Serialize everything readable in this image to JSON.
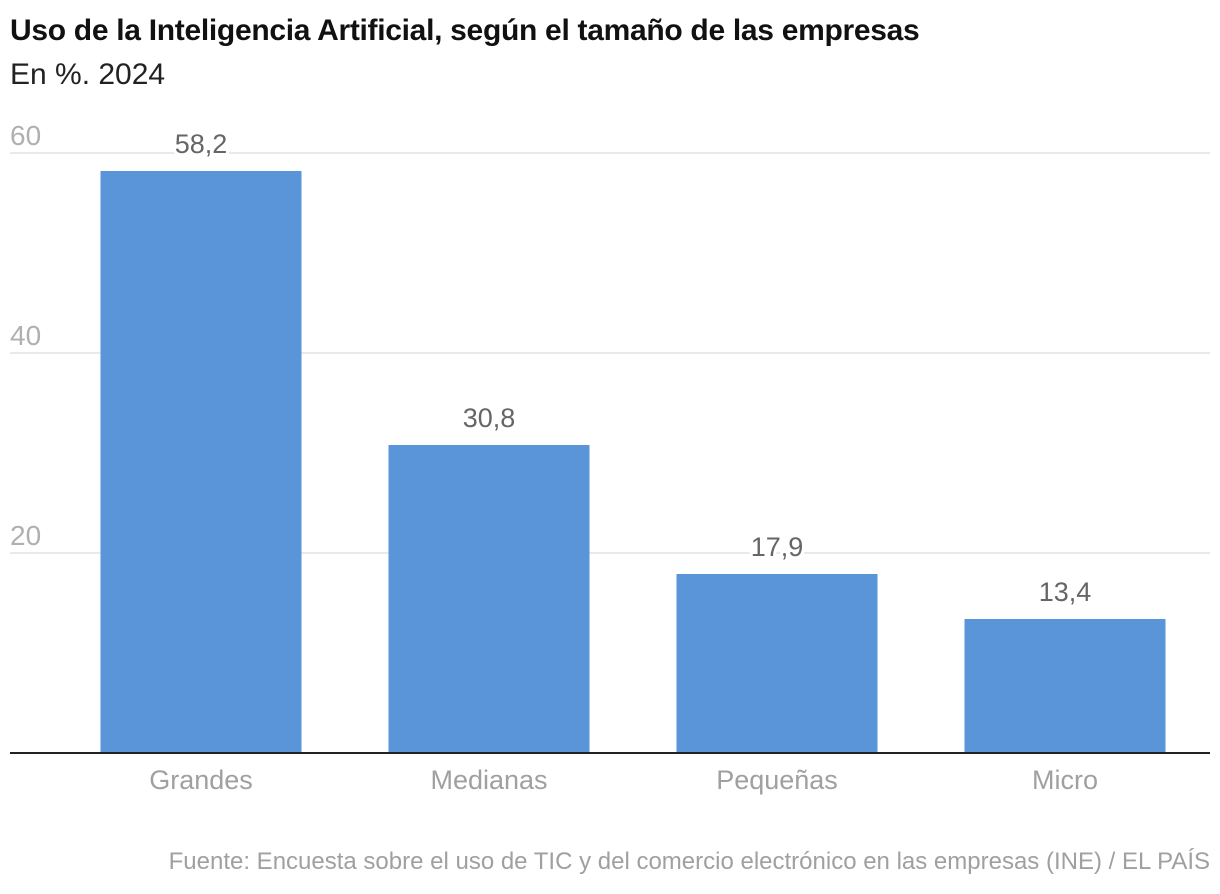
{
  "chart_data": {
    "type": "bar",
    "title": "Uso de la Inteligencia Artificial, según el tamaño de las empresas",
    "subtitle": "En %. 2024",
    "categories": [
      "Grandes",
      "Medianas",
      "Pequeñas",
      "Micro"
    ],
    "values": [
      58.2,
      30.8,
      17.9,
      13.4
    ],
    "value_labels": [
      "58,2",
      "30,8",
      "17,9",
      "13,4"
    ],
    "xlabel": "",
    "ylabel": "",
    "ylim": [
      0,
      60
    ],
    "yticks": [
      20,
      40,
      60
    ],
    "grid": true,
    "bar_color": "#5b95d9",
    "source": "Fuente: Encuesta sobre el uso de TIC y del comercio electrónico en las empresas (INE) / EL PAÍS"
  }
}
